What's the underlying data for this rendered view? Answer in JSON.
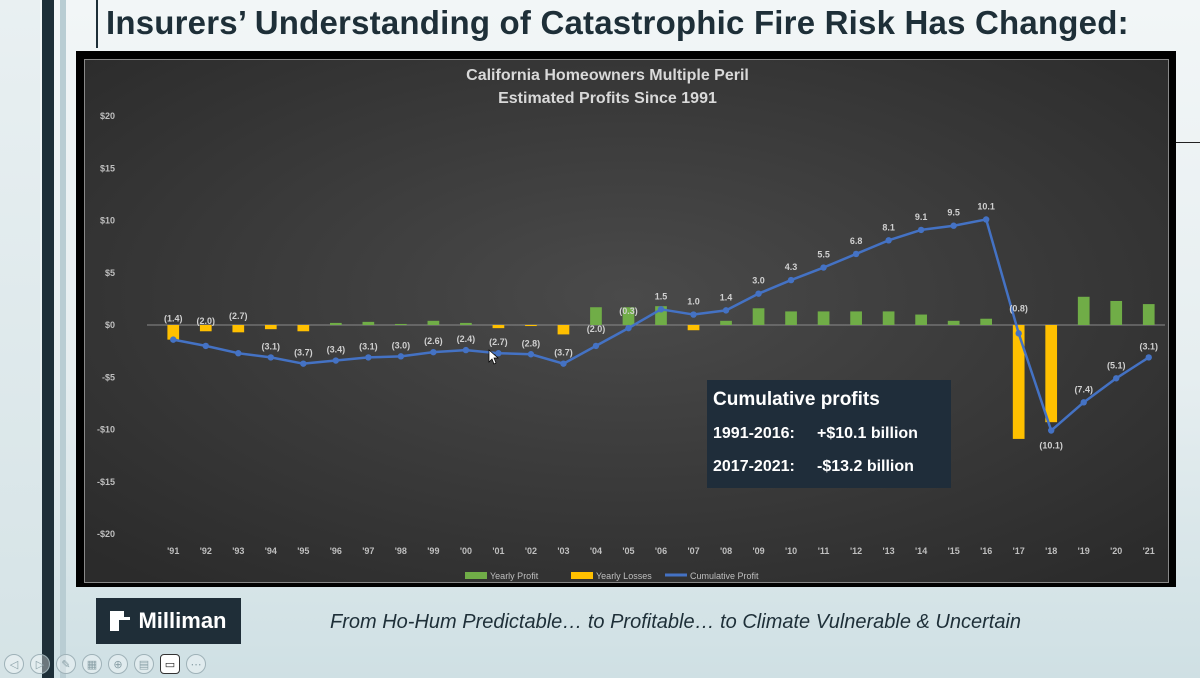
{
  "slide": {
    "title": "Insurers’ Understanding of Catastrophic Fire Risk Has Changed:",
    "tagline": "From Ho-Hum Predictable… to Profitable… to Climate Vulnerable & Uncertain",
    "logo_text": "Milliman"
  },
  "toolbar": {
    "buttons": [
      {
        "name": "back-icon",
        "glyph": "◁"
      },
      {
        "name": "forward-icon",
        "glyph": "▷"
      },
      {
        "name": "pen-icon",
        "glyph": "✎"
      },
      {
        "name": "slides-icon",
        "glyph": "▦"
      },
      {
        "name": "zoom-icon",
        "glyph": "⊕"
      },
      {
        "name": "subtitles-icon",
        "glyph": "▤"
      },
      {
        "name": "camera-icon",
        "glyph": "▭"
      },
      {
        "name": "more-icon",
        "glyph": "⋯"
      }
    ]
  },
  "chart_data": {
    "type": "bar",
    "title": "California Homeowners Multiple Peril",
    "subtitle": "Estimated Profits Since 1991",
    "categories": [
      "'91",
      "'92",
      "'93",
      "'94",
      "'95",
      "'96",
      "'97",
      "'98",
      "'99",
      "'00",
      "'01",
      "'02",
      "'03",
      "'04",
      "'05",
      "'06",
      "'07",
      "'08",
      "'09",
      "'10",
      "'11",
      "'12",
      "'13",
      "'14",
      "'15",
      "'16",
      "'17",
      "'18",
      "'19",
      "'20",
      "'21"
    ],
    "ylim": [
      -20,
      20
    ],
    "yticks": [
      20,
      15,
      10,
      5,
      0,
      -5,
      -10,
      -15,
      -20
    ],
    "ytick_labels": [
      "$20",
      "$15",
      "$10",
      "$5",
      "$0",
      "-$5",
      "-$10",
      "-$15",
      "-$20"
    ],
    "series": [
      {
        "name": "Yearly Profit",
        "kind": "bar",
        "color": "#70ad47",
        "values": [
          0,
          0,
          0,
          0,
          0,
          0.2,
          0.3,
          0.1,
          0.4,
          0.2,
          0,
          0,
          0,
          1.7,
          1.7,
          1.8,
          0,
          0.4,
          1.6,
          1.3,
          1.3,
          1.3,
          1.3,
          1.0,
          0.4,
          0.6,
          0,
          0,
          2.7,
          2.3,
          2.0
        ]
      },
      {
        "name": "Yearly Losses",
        "kind": "bar",
        "color": "#ffc000",
        "values": [
          -1.4,
          -0.6,
          -0.7,
          -0.4,
          -0.6,
          0,
          0,
          0,
          0,
          0,
          -0.3,
          -0.1,
          -0.9,
          0,
          0,
          0,
          -0.5,
          0,
          0,
          0,
          0,
          0,
          0,
          0,
          0,
          0,
          -10.9,
          -9.3,
          0,
          0,
          0
        ]
      },
      {
        "name": "Cumulative Profit",
        "kind": "line",
        "color": "#4472c4",
        "values": [
          -1.4,
          -2.0,
          -2.7,
          -3.1,
          -3.7,
          -3.4,
          -3.1,
          -3.0,
          -2.6,
          -2.4,
          -2.7,
          -2.8,
          -3.7,
          -2.0,
          -0.3,
          1.5,
          1.0,
          1.4,
          3.0,
          4.3,
          5.5,
          6.8,
          8.1,
          9.1,
          9.5,
          10.1,
          -0.8,
          -10.1,
          -7.4,
          -5.1,
          -3.1
        ],
        "labels": [
          "(1.4)",
          "(2.0)",
          "(2.7)",
          "(3.1)",
          "(3.7)",
          "(3.4)",
          "(3.1)",
          "(3.0)",
          "(2.6)",
          "(2.4)",
          "(2.7)",
          "(2.8)",
          "(3.7)",
          "(2.0)",
          "(0.3)",
          "1.5",
          "1.0",
          "1.4",
          "3.0",
          "4.3",
          "5.5",
          "6.8",
          "8.1",
          "9.1",
          "9.5",
          "10.1",
          "(0.8)",
          "(10.1)",
          "(7.4)",
          "(5.1)",
          "(3.1)"
        ]
      }
    ],
    "legend": {
      "position": "bottom"
    },
    "grid": false,
    "annotation": {
      "heading": "Cumulative profits",
      "line1_period": "1991-2016:",
      "line1_value": "+$10.1 billion",
      "line2_period": "2017-2021:",
      "line2_value": "-$13.2 billion"
    },
    "colors": {
      "background": "#3f3f3f",
      "text": "#d9d9d9",
      "annotation_bg": "#1f2d3a"
    }
  }
}
